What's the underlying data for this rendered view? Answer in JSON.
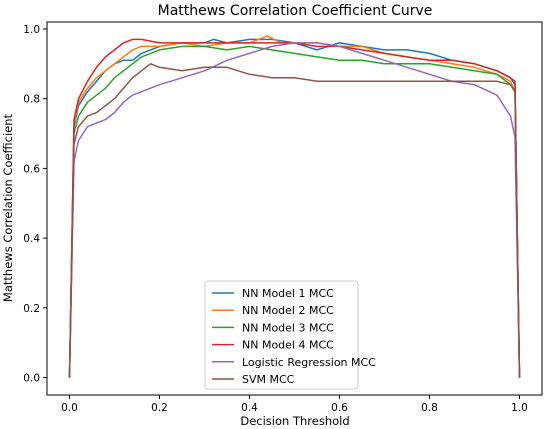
{
  "chart_data": {
    "type": "line",
    "title": "Matthews Correlation Coefficient Curve",
    "xlabel": "Decision Threshold",
    "ylabel": "Matthews Correlation Coefficient",
    "xlim": [
      -0.05,
      1.05
    ],
    "ylim": [
      -0.05,
      1.02
    ],
    "xticks": [
      "0.0",
      "0.2",
      "0.4",
      "0.6",
      "0.8",
      "1.0"
    ],
    "xtick_values": [
      0.0,
      0.2,
      0.4,
      0.6,
      0.8,
      1.0
    ],
    "yticks": [
      "0.0",
      "0.2",
      "0.4",
      "0.6",
      "0.8",
      "1.0"
    ],
    "ytick_values": [
      0.0,
      0.2,
      0.4,
      0.6,
      0.8,
      1.0
    ],
    "grid": false,
    "legend_position": "bottom-center",
    "series": [
      {
        "name": "NN Model 1 MCC",
        "color": "#1f77b4",
        "x": [
          0.0,
          0.01,
          0.02,
          0.04,
          0.06,
          0.08,
          0.1,
          0.12,
          0.14,
          0.16,
          0.2,
          0.25,
          0.3,
          0.32,
          0.35,
          0.4,
          0.45,
          0.5,
          0.55,
          0.6,
          0.65,
          0.7,
          0.75,
          0.8,
          0.85,
          0.9,
          0.95,
          0.98,
          0.99,
          1.0
        ],
        "y": [
          0.0,
          0.72,
          0.78,
          0.82,
          0.85,
          0.88,
          0.9,
          0.91,
          0.91,
          0.93,
          0.95,
          0.96,
          0.96,
          0.97,
          0.96,
          0.97,
          0.97,
          0.96,
          0.94,
          0.96,
          0.95,
          0.94,
          0.94,
          0.93,
          0.91,
          0.9,
          0.88,
          0.86,
          0.84,
          0.0
        ]
      },
      {
        "name": "NN Model 2 MCC",
        "color": "#ff7f0e",
        "x": [
          0.0,
          0.01,
          0.02,
          0.04,
          0.06,
          0.08,
          0.1,
          0.12,
          0.14,
          0.16,
          0.2,
          0.25,
          0.3,
          0.35,
          0.4,
          0.44,
          0.47,
          0.5,
          0.55,
          0.6,
          0.65,
          0.7,
          0.75,
          0.8,
          0.85,
          0.9,
          0.95,
          0.98,
          0.99,
          1.0
        ],
        "y": [
          0.0,
          0.73,
          0.79,
          0.83,
          0.86,
          0.88,
          0.9,
          0.92,
          0.94,
          0.95,
          0.95,
          0.96,
          0.95,
          0.96,
          0.96,
          0.98,
          0.96,
          0.96,
          0.96,
          0.95,
          0.95,
          0.93,
          0.92,
          0.91,
          0.9,
          0.89,
          0.87,
          0.85,
          0.82,
          0.0
        ]
      },
      {
        "name": "NN Model 3 MCC",
        "color": "#2ca02c",
        "x": [
          0.0,
          0.01,
          0.02,
          0.04,
          0.06,
          0.08,
          0.1,
          0.12,
          0.14,
          0.16,
          0.2,
          0.25,
          0.3,
          0.35,
          0.4,
          0.45,
          0.5,
          0.55,
          0.6,
          0.65,
          0.7,
          0.75,
          0.8,
          0.85,
          0.9,
          0.95,
          0.98,
          0.99,
          1.0
        ],
        "y": [
          0.0,
          0.7,
          0.75,
          0.79,
          0.81,
          0.83,
          0.86,
          0.88,
          0.9,
          0.92,
          0.94,
          0.95,
          0.95,
          0.94,
          0.95,
          0.94,
          0.93,
          0.92,
          0.91,
          0.91,
          0.9,
          0.9,
          0.9,
          0.89,
          0.88,
          0.87,
          0.84,
          0.82,
          0.0
        ]
      },
      {
        "name": "NN Model 4 MCC",
        "color": "#d62728",
        "x": [
          0.0,
          0.01,
          0.02,
          0.04,
          0.06,
          0.08,
          0.1,
          0.12,
          0.14,
          0.16,
          0.2,
          0.25,
          0.3,
          0.35,
          0.4,
          0.45,
          0.5,
          0.55,
          0.6,
          0.65,
          0.7,
          0.75,
          0.8,
          0.85,
          0.9,
          0.95,
          0.98,
          0.99,
          1.0
        ],
        "y": [
          0.0,
          0.74,
          0.8,
          0.85,
          0.89,
          0.92,
          0.94,
          0.96,
          0.97,
          0.97,
          0.96,
          0.96,
          0.96,
          0.96,
          0.96,
          0.96,
          0.96,
          0.95,
          0.95,
          0.94,
          0.93,
          0.92,
          0.91,
          0.91,
          0.9,
          0.88,
          0.86,
          0.85,
          0.0
        ]
      },
      {
        "name": "Logistic Regression MCC",
        "color": "#9467bd",
        "x": [
          0.0,
          0.01,
          0.02,
          0.04,
          0.06,
          0.08,
          0.1,
          0.12,
          0.14,
          0.16,
          0.2,
          0.25,
          0.3,
          0.35,
          0.4,
          0.45,
          0.5,
          0.55,
          0.6,
          0.65,
          0.7,
          0.75,
          0.8,
          0.85,
          0.9,
          0.95,
          0.98,
          0.99,
          1.0
        ],
        "y": [
          0.0,
          0.62,
          0.68,
          0.72,
          0.73,
          0.74,
          0.76,
          0.79,
          0.81,
          0.82,
          0.84,
          0.86,
          0.88,
          0.91,
          0.93,
          0.95,
          0.96,
          0.96,
          0.95,
          0.93,
          0.91,
          0.89,
          0.87,
          0.85,
          0.84,
          0.81,
          0.75,
          0.69,
          0.0
        ]
      },
      {
        "name": "SVM MCC",
        "color": "#8c564b",
        "x": [
          0.0,
          0.01,
          0.02,
          0.04,
          0.06,
          0.08,
          0.1,
          0.12,
          0.14,
          0.16,
          0.18,
          0.2,
          0.25,
          0.3,
          0.35,
          0.4,
          0.45,
          0.5,
          0.55,
          0.6,
          0.65,
          0.7,
          0.75,
          0.8,
          0.85,
          0.9,
          0.95,
          0.98,
          0.99,
          1.0
        ],
        "y": [
          0.0,
          0.67,
          0.72,
          0.75,
          0.76,
          0.78,
          0.8,
          0.83,
          0.86,
          0.88,
          0.9,
          0.89,
          0.88,
          0.89,
          0.89,
          0.87,
          0.86,
          0.86,
          0.85,
          0.85,
          0.85,
          0.85,
          0.85,
          0.85,
          0.85,
          0.85,
          0.85,
          0.84,
          0.82,
          0.0
        ]
      }
    ]
  }
}
